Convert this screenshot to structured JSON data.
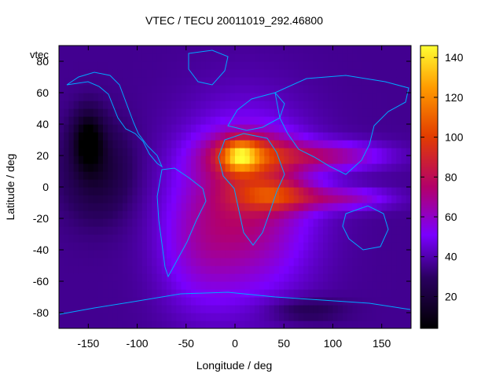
{
  "chart_data": {
    "type": "heatmap",
    "title": "VTEC / TECU 20011019_292.46800",
    "xlabel": "Longitude / deg",
    "ylabel": "Latitude / deg",
    "xlim": [
      -180,
      180
    ],
    "ylim": [
      -90,
      90
    ],
    "x_ticks": [
      -150,
      -100,
      -50,
      0,
      50,
      100,
      150
    ],
    "y_ticks": [
      -80,
      -60,
      -40,
      -20,
      0,
      20,
      40,
      60,
      80
    ],
    "colorbar": {
      "range": [
        4,
        146
      ],
      "ticks": [
        20,
        40,
        60,
        80,
        100,
        120,
        140
      ],
      "label": "vtec",
      "stops": [
        {
          "v": 0.0,
          "c": "#000000"
        },
        {
          "v": 0.18,
          "c": "#2a0060"
        },
        {
          "v": 0.33,
          "c": "#7a00ff"
        },
        {
          "v": 0.5,
          "c": "#b3006a"
        },
        {
          "v": 0.68,
          "c": "#e23d00"
        },
        {
          "v": 0.85,
          "c": "#ff9a00"
        },
        {
          "v": 1.0,
          "c": "#ffff33"
        }
      ]
    },
    "overlay": "coastlines",
    "coastline_color": "#00a8ff"
  }
}
